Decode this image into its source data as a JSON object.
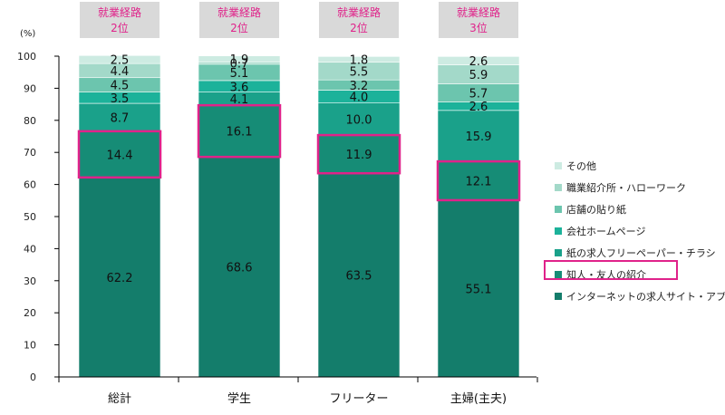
{
  "chart_data": {
    "type": "bar",
    "stacked": true,
    "ylabel": "(%)",
    "ylim": [
      0,
      100
    ],
    "yticks": [
      0,
      10,
      20,
      30,
      40,
      50,
      60,
      70,
      80,
      90,
      100
    ],
    "categories": [
      "総計",
      "学生",
      "フリーター",
      "主婦(主夫)"
    ],
    "rank_badges": [
      {
        "line1": "就業経路",
        "line2": "2位"
      },
      {
        "line1": "就業経路",
        "line2": "2位"
      },
      {
        "line1": "就業経路",
        "line2": "2位"
      },
      {
        "line1": "就業経路",
        "line2": "3位"
      }
    ],
    "highlight_series": "知人・友人の紹介",
    "series": [
      {
        "name": "インターネットの求人サイト・アプリ",
        "color": "#147d6b",
        "values": [
          62.2,
          68.6,
          63.5,
          55.1
        ]
      },
      {
        "name": "知人・友人の紹介",
        "color": "#168c76",
        "values": [
          14.4,
          16.1,
          11.9,
          12.1
        ]
      },
      {
        "name": "紙の求人フリーペーパー・チラシ",
        "color": "#1aa18a",
        "values": [
          8.7,
          4.1,
          10.0,
          15.9
        ]
      },
      {
        "name": "会社ホームページ",
        "color": "#1cb29a",
        "values": [
          3.5,
          3.6,
          4.0,
          2.6
        ]
      },
      {
        "name": "店舗の貼り紙",
        "color": "#6cc5ae",
        "values": [
          4.5,
          5.1,
          3.2,
          5.7
        ]
      },
      {
        "name": "職業紹介所・ハローワーク",
        "color": "#a3d9c9",
        "values": [
          4.4,
          0.7,
          5.5,
          5.9
        ]
      },
      {
        "name": "その他",
        "color": "#cdebe2",
        "values": [
          2.5,
          1.9,
          1.8,
          2.6
        ]
      }
    ],
    "legend_position": "right",
    "grid": false,
    "colors": {
      "highlight": "#e0228a",
      "badge_bg": "#d9d9d9",
      "badge_text": "#e0228a",
      "axis": "#000000"
    }
  }
}
